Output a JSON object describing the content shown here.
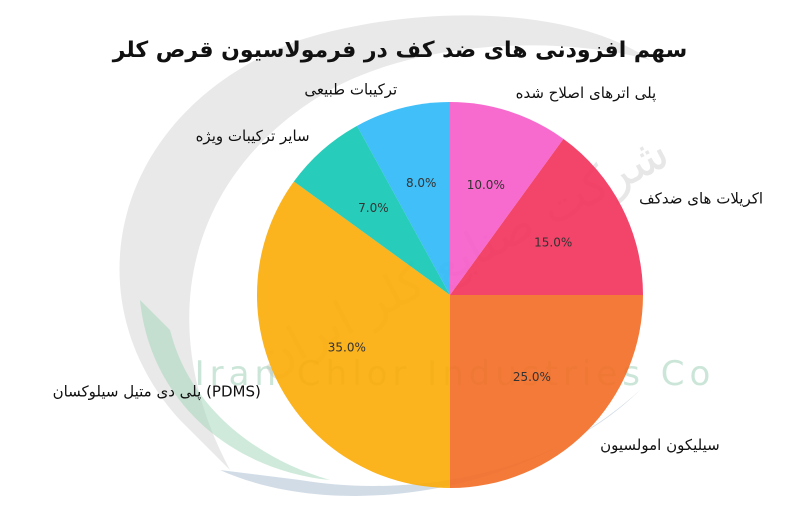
{
  "chart_data": {
    "type": "pie",
    "title": "سهم افزودنی های ضد کف در فرمولاسیون قرص کلر",
    "slices": [
      {
        "label": "پلی اترهای اصلاح شده",
        "value": 10.0,
        "pct_label": "10.0%",
        "color": "#f75bc9"
      },
      {
        "label": "اکریلات های ضدکف",
        "value": 15.0,
        "pct_label": "15.0%",
        "color": "#f2305a"
      },
      {
        "label": "سیلیکون امولسیون",
        "value": 25.0,
        "pct_label": "25.0%",
        "color": "#f36b23"
      },
      {
        "label": "پلی دی متیل سیلوکسان (PDMS)",
        "value": 35.0,
        "pct_label": "35.0%",
        "color": "#fbab06"
      },
      {
        "label": "سایر ترکیبات ویژه",
        "value": 7.0,
        "pct_label": "7.0%",
        "color": "#0fc6b2"
      },
      {
        "label": "ترکیبات طبیعی",
        "value": 8.0,
        "pct_label": "8.0%",
        "color": "#2bb8f7"
      }
    ],
    "start_angle_deg": 90,
    "direction": "clockwise",
    "legend": "none"
  },
  "watermark": {
    "company_fa": "شرکت صنایع کلر ایران",
    "company_en": "Iran Chlor Industries Co"
  }
}
